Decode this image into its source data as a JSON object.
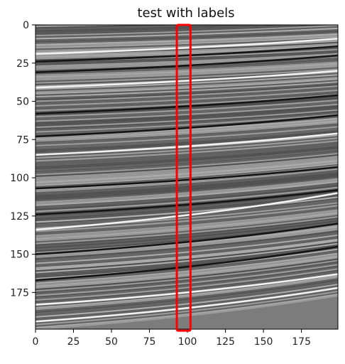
{
  "chart_data": {
    "type": "heatmap",
    "title": "test with labels",
    "xlabel": "",
    "ylabel": "",
    "xlim": [
      0,
      199
    ],
    "ylim": [
      199,
      0
    ],
    "colormap": "gray",
    "x_ticks": [
      0,
      25,
      50,
      75,
      100,
      125,
      150,
      175
    ],
    "y_ticks": [
      0,
      25,
      50,
      75,
      100,
      125,
      150,
      175
    ],
    "highlight_box": {
      "x_range": [
        93,
        102
      ],
      "y_range": [
        0,
        200
      ],
      "color": "#ff0000"
    },
    "reflector_lines": [
      {
        "y_at_x0": 19,
        "y_at_x199": 9,
        "tone": "light"
      },
      {
        "y_at_x0": 24,
        "y_at_x199": 14,
        "tone": "dark"
      },
      {
        "y_at_x0": 31,
        "y_at_x199": 20,
        "tone": "dark"
      },
      {
        "y_at_x0": 41,
        "y_at_x199": 30,
        "tone": "light"
      },
      {
        "y_at_x0": 58,
        "y_at_x199": 46,
        "tone": "dark"
      },
      {
        "y_at_x0": 73,
        "y_at_x199": 59,
        "tone": "dark"
      },
      {
        "y_at_x0": 85,
        "y_at_x199": 71,
        "tone": "light"
      },
      {
        "y_at_x0": 107,
        "y_at_x199": 93,
        "tone": "dark"
      },
      {
        "y_at_x0": 124,
        "y_at_x199": 108,
        "tone": "dark"
      },
      {
        "y_at_x0": 134,
        "y_at_x199": 110,
        "tone": "light"
      },
      {
        "y_at_x0": 150,
        "y_at_x199": 130,
        "tone": "dark"
      },
      {
        "y_at_x0": 167,
        "y_at_x199": 145,
        "tone": "dark"
      },
      {
        "y_at_x0": 183,
        "y_at_x199": 163,
        "tone": "light"
      },
      {
        "y_at_x0": 194,
        "y_at_x199": 172,
        "tone": "light"
      }
    ]
  }
}
